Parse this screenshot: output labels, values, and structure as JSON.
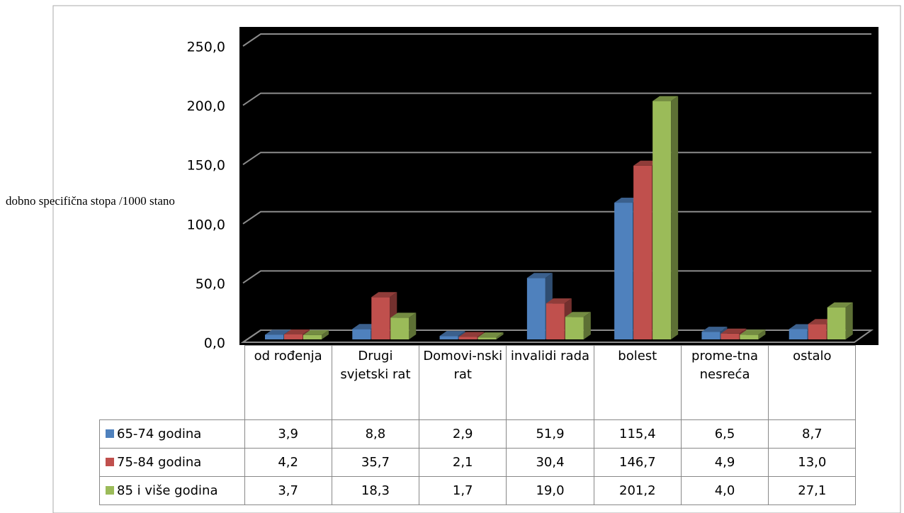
{
  "chart_data": {
    "type": "bar",
    "y_label": "dobno specifična stopa /1000 stano",
    "categories": [
      "od rođenja",
      "Drugi svjetski rat",
      "Domovi-nski rat",
      "invalidi rada",
      "bolest",
      "prome-tna nesreća",
      "ostalo"
    ],
    "series": [
      {
        "name": "65-74 godina",
        "color": "#4f81bd",
        "values": [
          3.9,
          8.8,
          2.9,
          51.9,
          115.4,
          6.5,
          8.7
        ],
        "value_labels": [
          "3,9",
          "8,8",
          "2,9",
          "51,9",
          "115,4",
          "6,5",
          "8,7"
        ]
      },
      {
        "name": "75-84 godina",
        "color": "#c0504d",
        "values": [
          4.2,
          35.7,
          2.1,
          30.4,
          146.7,
          4.9,
          13.0
        ],
        "value_labels": [
          "4,2",
          "35,7",
          "2,1",
          "30,4",
          "146,7",
          "4,9",
          "13,0"
        ]
      },
      {
        "name": "85 i više godina",
        "color": "#9bbb59",
        "values": [
          3.7,
          18.3,
          1.7,
          19.0,
          201.2,
          4.0,
          27.1
        ],
        "value_labels": [
          "3,7",
          "18,3",
          "1,7",
          "19,0",
          "201,2",
          "4,0",
          "27,1"
        ]
      }
    ],
    "ylim": [
      0,
      250
    ],
    "yticks": [
      {
        "value": 0,
        "label": "0,0"
      },
      {
        "value": 50,
        "label": "50,0"
      },
      {
        "value": 100,
        "label": "100,0"
      },
      {
        "value": 150,
        "label": "150,0"
      },
      {
        "value": 200,
        "label": "200,0"
      },
      {
        "value": 250,
        "label": "250,0"
      }
    ],
    "grid": true
  }
}
